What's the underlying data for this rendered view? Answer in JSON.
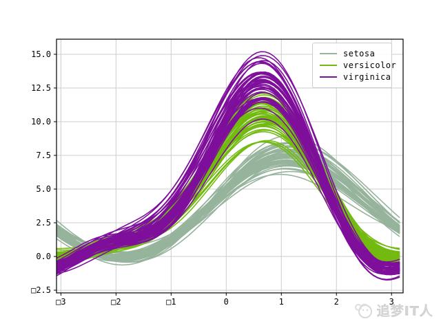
{
  "chart_data": {
    "type": "line",
    "subtype": "andrews_curves",
    "title": "",
    "xlabel": "",
    "ylabel": "",
    "grid": true,
    "grid_color": "#cccccc",
    "spine_color": "#000000",
    "xlim": [
      -3.08,
      3.21
    ],
    "ylim": [
      -2.7,
      16.12
    ],
    "x_ticks": [
      -3,
      -2,
      -1,
      0,
      1,
      2,
      3
    ],
    "x_tick_labels": [
      "□3",
      "□2",
      "□1",
      "0",
      "1",
      "2",
      "3"
    ],
    "y_ticks": [
      15.0,
      12.5,
      10.0,
      7.5,
      5.0,
      2.5,
      0.0,
      -2.5
    ],
    "y_tick_labels": [
      "15.0",
      "12.5",
      "10.0",
      "7.5",
      "5.0",
      "2.5",
      "0.0",
      "□2.5"
    ],
    "t_range": [
      -3.14159265,
      3.14159265
    ],
    "legend_position": "upper right",
    "series": [
      {
        "name": "setosa",
        "color": "#96b39c",
        "samples": [
          [
            5.1,
            3.5,
            1.4,
            0.2
          ],
          [
            4.9,
            3.0,
            1.4,
            0.2
          ],
          [
            4.7,
            3.2,
            1.3,
            0.2
          ],
          [
            4.6,
            3.1,
            1.5,
            0.2
          ],
          [
            5.0,
            3.6,
            1.4,
            0.2
          ],
          [
            5.4,
            3.9,
            1.7,
            0.4
          ],
          [
            4.6,
            3.4,
            1.4,
            0.3
          ],
          [
            5.0,
            3.4,
            1.5,
            0.2
          ],
          [
            4.4,
            2.9,
            1.4,
            0.2
          ],
          [
            4.9,
            3.1,
            1.5,
            0.1
          ],
          [
            5.4,
            3.7,
            1.5,
            0.2
          ],
          [
            4.8,
            3.4,
            1.6,
            0.2
          ],
          [
            4.8,
            3.0,
            1.4,
            0.1
          ],
          [
            4.3,
            3.0,
            1.1,
            0.1
          ],
          [
            5.8,
            4.0,
            1.2,
            0.2
          ],
          [
            5.7,
            4.4,
            1.5,
            0.4
          ],
          [
            5.4,
            3.9,
            1.3,
            0.4
          ],
          [
            5.1,
            3.5,
            1.4,
            0.3
          ],
          [
            5.7,
            3.8,
            1.7,
            0.3
          ],
          [
            5.1,
            3.8,
            1.5,
            0.3
          ],
          [
            5.4,
            3.4,
            1.7,
            0.2
          ],
          [
            5.1,
            3.7,
            1.5,
            0.4
          ],
          [
            4.6,
            3.6,
            1.0,
            0.2
          ],
          [
            5.1,
            3.3,
            1.7,
            0.5
          ],
          [
            4.8,
            3.4,
            1.9,
            0.2
          ],
          [
            5.0,
            3.0,
            1.6,
            0.2
          ],
          [
            5.0,
            3.4,
            1.6,
            0.4
          ],
          [
            5.2,
            3.5,
            1.5,
            0.2
          ],
          [
            5.2,
            3.4,
            1.4,
            0.2
          ],
          [
            4.7,
            3.2,
            1.6,
            0.2
          ],
          [
            4.8,
            3.1,
            1.6,
            0.2
          ],
          [
            5.4,
            3.4,
            1.5,
            0.4
          ],
          [
            5.2,
            4.1,
            1.5,
            0.1
          ],
          [
            5.5,
            4.2,
            1.4,
            0.2
          ],
          [
            4.9,
            3.1,
            1.5,
            0.2
          ],
          [
            5.0,
            3.2,
            1.2,
            0.2
          ],
          [
            5.5,
            3.5,
            1.3,
            0.2
          ],
          [
            4.9,
            3.6,
            1.4,
            0.1
          ],
          [
            4.4,
            3.0,
            1.3,
            0.2
          ],
          [
            5.1,
            3.4,
            1.5,
            0.2
          ],
          [
            5.0,
            3.5,
            1.3,
            0.3
          ],
          [
            4.5,
            2.3,
            1.3,
            0.3
          ],
          [
            4.4,
            3.2,
            1.3,
            0.2
          ],
          [
            5.0,
            3.5,
            1.6,
            0.6
          ],
          [
            5.1,
            3.8,
            1.9,
            0.4
          ],
          [
            4.8,
            3.0,
            1.4,
            0.3
          ],
          [
            5.1,
            3.8,
            1.6,
            0.2
          ],
          [
            4.6,
            3.2,
            1.4,
            0.2
          ],
          [
            5.3,
            3.7,
            1.5,
            0.2
          ],
          [
            5.0,
            3.3,
            1.4,
            0.2
          ]
        ]
      },
      {
        "name": "versicolor",
        "color": "#72ba10",
        "samples": [
          [
            7.0,
            3.2,
            4.7,
            1.4
          ],
          [
            6.4,
            3.2,
            4.5,
            1.5
          ],
          [
            6.9,
            3.1,
            4.9,
            1.5
          ],
          [
            5.5,
            2.3,
            4.0,
            1.3
          ],
          [
            6.5,
            2.8,
            4.6,
            1.5
          ],
          [
            5.7,
            2.8,
            4.5,
            1.3
          ],
          [
            6.3,
            3.3,
            4.7,
            1.6
          ],
          [
            4.9,
            2.4,
            3.3,
            1.0
          ],
          [
            6.6,
            2.9,
            4.6,
            1.3
          ],
          [
            5.2,
            2.7,
            3.9,
            1.4
          ],
          [
            5.0,
            2.0,
            3.5,
            1.0
          ],
          [
            5.9,
            3.0,
            4.2,
            1.5
          ],
          [
            6.0,
            2.2,
            4.0,
            1.0
          ],
          [
            6.1,
            2.9,
            4.7,
            1.4
          ],
          [
            5.6,
            2.9,
            3.6,
            1.3
          ],
          [
            6.7,
            3.1,
            4.4,
            1.4
          ],
          [
            5.6,
            3.0,
            4.5,
            1.5
          ],
          [
            5.8,
            2.7,
            4.1,
            1.0
          ],
          [
            6.2,
            2.2,
            4.5,
            1.5
          ],
          [
            5.6,
            2.5,
            3.9,
            1.1
          ],
          [
            5.9,
            3.2,
            4.8,
            1.8
          ],
          [
            6.1,
            2.8,
            4.0,
            1.3
          ],
          [
            6.3,
            2.5,
            4.9,
            1.5
          ],
          [
            6.1,
            2.8,
            4.7,
            1.2
          ],
          [
            6.4,
            2.9,
            4.3,
            1.3
          ],
          [
            6.6,
            3.0,
            4.4,
            1.4
          ],
          [
            6.8,
            2.8,
            4.8,
            1.4
          ],
          [
            6.7,
            3.0,
            5.0,
            1.7
          ],
          [
            6.0,
            2.9,
            4.5,
            1.5
          ],
          [
            5.7,
            2.6,
            3.5,
            1.0
          ],
          [
            5.5,
            2.4,
            3.8,
            1.1
          ],
          [
            5.5,
            2.4,
            3.7,
            1.0
          ],
          [
            5.8,
            2.7,
            3.9,
            1.2
          ],
          [
            6.0,
            2.7,
            5.1,
            1.6
          ],
          [
            5.4,
            3.0,
            4.5,
            1.5
          ],
          [
            6.0,
            3.4,
            4.5,
            1.6
          ],
          [
            6.7,
            3.1,
            4.7,
            1.5
          ],
          [
            6.3,
            2.3,
            4.4,
            1.3
          ],
          [
            5.6,
            3.0,
            4.1,
            1.3
          ],
          [
            5.5,
            2.5,
            4.0,
            1.3
          ],
          [
            5.5,
            2.6,
            4.4,
            1.2
          ],
          [
            6.1,
            3.0,
            4.6,
            1.4
          ],
          [
            5.8,
            2.6,
            4.0,
            1.2
          ],
          [
            5.0,
            2.3,
            3.3,
            1.0
          ],
          [
            5.6,
            2.7,
            4.2,
            1.3
          ],
          [
            5.7,
            3.0,
            4.2,
            1.2
          ],
          [
            5.7,
            2.9,
            4.2,
            1.3
          ],
          [
            6.2,
            2.9,
            4.3,
            1.3
          ],
          [
            5.1,
            2.5,
            3.0,
            1.1
          ],
          [
            5.7,
            2.8,
            4.1,
            1.3
          ]
        ]
      },
      {
        "name": "virginica",
        "color": "#7e0f9b",
        "samples": [
          [
            6.3,
            3.3,
            6.0,
            2.5
          ],
          [
            5.8,
            2.7,
            5.1,
            1.9
          ],
          [
            7.1,
            3.0,
            5.9,
            2.1
          ],
          [
            6.3,
            2.9,
            5.6,
            1.8
          ],
          [
            6.5,
            3.0,
            5.8,
            2.2
          ],
          [
            7.6,
            3.0,
            6.6,
            2.1
          ],
          [
            4.9,
            2.5,
            4.5,
            1.7
          ],
          [
            7.3,
            2.9,
            6.3,
            1.8
          ],
          [
            6.7,
            2.5,
            5.8,
            1.8
          ],
          [
            7.2,
            3.6,
            6.1,
            2.5
          ],
          [
            6.5,
            3.2,
            5.1,
            2.0
          ],
          [
            6.4,
            2.7,
            5.3,
            1.9
          ],
          [
            6.8,
            3.0,
            5.5,
            2.1
          ],
          [
            5.7,
            2.5,
            5.0,
            2.0
          ],
          [
            5.8,
            2.8,
            5.1,
            2.4
          ],
          [
            6.4,
            3.2,
            5.3,
            2.3
          ],
          [
            6.5,
            3.0,
            5.5,
            1.8
          ],
          [
            7.7,
            3.8,
            6.7,
            2.2
          ],
          [
            7.7,
            2.6,
            6.9,
            2.3
          ],
          [
            6.0,
            2.2,
            5.0,
            1.5
          ],
          [
            6.9,
            3.2,
            5.7,
            2.3
          ],
          [
            5.6,
            2.8,
            4.9,
            2.0
          ],
          [
            7.7,
            2.8,
            6.7,
            2.0
          ],
          [
            6.3,
            2.7,
            4.9,
            1.8
          ],
          [
            6.7,
            3.3,
            5.7,
            2.1
          ],
          [
            7.2,
            3.2,
            6.0,
            1.8
          ],
          [
            6.2,
            2.8,
            4.8,
            1.8
          ],
          [
            6.1,
            3.0,
            4.9,
            1.8
          ],
          [
            6.4,
            2.8,
            5.6,
            2.1
          ],
          [
            7.2,
            3.0,
            5.8,
            1.6
          ],
          [
            7.4,
            2.8,
            6.1,
            1.9
          ],
          [
            7.9,
            3.8,
            6.4,
            2.0
          ],
          [
            6.4,
            2.8,
            5.6,
            2.2
          ],
          [
            6.3,
            2.8,
            5.1,
            1.5
          ],
          [
            6.1,
            2.6,
            5.6,
            1.4
          ],
          [
            7.7,
            3.0,
            6.1,
            2.3
          ],
          [
            6.3,
            3.4,
            5.6,
            2.4
          ],
          [
            6.4,
            3.1,
            5.5,
            1.8
          ],
          [
            6.0,
            3.0,
            4.8,
            1.8
          ],
          [
            6.9,
            3.1,
            5.4,
            2.1
          ],
          [
            6.7,
            3.1,
            5.6,
            2.4
          ],
          [
            6.9,
            3.1,
            5.1,
            2.3
          ],
          [
            5.8,
            2.7,
            5.1,
            1.9
          ],
          [
            6.8,
            3.2,
            5.9,
            2.3
          ],
          [
            6.7,
            3.3,
            5.7,
            2.5
          ],
          [
            6.7,
            3.0,
            5.2,
            2.3
          ],
          [
            6.3,
            2.5,
            5.0,
            1.9
          ],
          [
            6.5,
            3.0,
            5.2,
            2.0
          ],
          [
            6.2,
            3.4,
            5.4,
            2.3
          ],
          [
            5.9,
            3.0,
            5.1,
            1.8
          ]
        ]
      }
    ]
  },
  "legend": {
    "entries": [
      "setosa",
      "versicolor",
      "virginica"
    ]
  },
  "watermark": {
    "text": "追梦IT人",
    "color": "#d4d4d4"
  }
}
